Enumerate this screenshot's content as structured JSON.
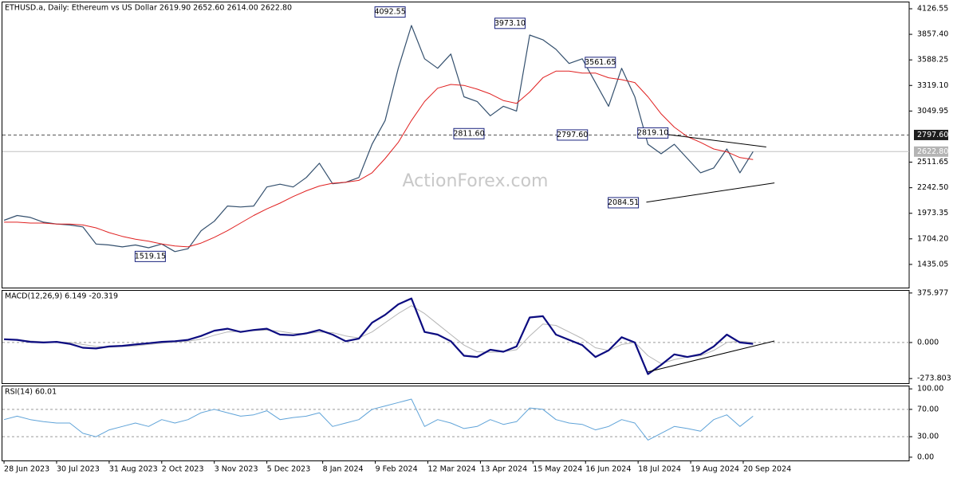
{
  "chart_data": [
    {
      "type": "line",
      "title": "ETHUSD.a, Daily:  Ethereum vs US Dollar  2619.90 2652.60 2614.00 2622.80",
      "watermark": "ActionForex.com",
      "x": [
        0,
        8,
        16,
        24,
        32,
        40,
        48,
        56,
        64,
        72,
        80,
        88,
        96,
        104,
        112,
        120,
        128,
        136,
        144,
        152,
        160,
        168,
        176,
        184,
        192,
        200,
        208,
        216,
        224,
        232,
        240,
        248,
        256,
        264,
        272,
        280,
        288,
        296,
        304,
        312,
        320,
        328,
        336,
        344,
        352,
        360,
        368,
        376,
        384,
        392,
        400,
        408,
        416,
        424,
        432,
        440,
        448,
        456
      ],
      "xlim": [
        -1,
        551
      ],
      "xticks": [
        {
          "value": 0,
          "label": "28 Jun 2023"
        },
        {
          "value": 32,
          "label": "30 Jul 2023"
        },
        {
          "value": 64,
          "label": "31 Aug 2023"
        },
        {
          "value": 96,
          "label": "2 Oct 2023"
        },
        {
          "value": 128,
          "label": "3 Nov 2023"
        },
        {
          "value": 160,
          "label": "5 Dec 2023"
        },
        {
          "value": 194,
          "label": "8 Jan 2024"
        },
        {
          "value": 226,
          "label": "9 Feb 2024"
        },
        {
          "value": 258,
          "label": "12 Mar 2024"
        },
        {
          "value": 290,
          "label": "13 Apr 2024"
        },
        {
          "value": 322,
          "label": "15 May 2024"
        },
        {
          "value": 354,
          "label": "16 Jun 2024"
        },
        {
          "value": 386,
          "label": "18 Jul 2024"
        },
        {
          "value": 418,
          "label": "19 Aug 2024"
        },
        {
          "value": 450,
          "label": "20 Sep 2024"
        }
      ],
      "ylim": [
        1191,
        4202
      ],
      "yticks": [
        4126.55,
        {
          "value": 3857.4,
          "label": "3857.40"
        },
        3588.25,
        {
          "value": 3319.1,
          "label": "3319.10"
        },
        3049.95,
        2511.65,
        {
          "value": 2242.5,
          "label": "2242.50"
        },
        1973.35,
        {
          "value": 1704.2,
          "label": "1704.20"
        },
        1435.05
      ],
      "series": [
        {
          "color": "#34506e",
          "width": 1.2,
          "values": [
            1900,
            1950,
            1930,
            1880,
            1860,
            1850,
            1830,
            1650,
            1640,
            1620,
            1640,
            1610,
            1650,
            1570,
            1600,
            1790,
            1890,
            2050,
            2040,
            2050,
            2250,
            2280,
            2250,
            2350,
            2500,
            2285,
            2300,
            2350,
            2700,
            2950,
            3500,
            3950,
            3600,
            3500,
            3650,
            3200,
            3150,
            3000,
            3100,
            3050,
            3850,
            3800,
            3700,
            3550,
            3600,
            3350,
            3100,
            3500,
            3200,
            2700,
            2600,
            2700,
            2550,
            2400,
            2450,
            2650,
            2400,
            2622.8
          ]
        },
        {
          "color": "#e02020",
          "width": 1,
          "values": [
            1880,
            1880,
            1870,
            1870,
            1860,
            1860,
            1850,
            1820,
            1770,
            1730,
            1700,
            1680,
            1650,
            1630,
            1620,
            1660,
            1720,
            1790,
            1870,
            1950,
            2020,
            2080,
            2150,
            2210,
            2260,
            2290,
            2300,
            2320,
            2400,
            2550,
            2720,
            2950,
            3150,
            3290,
            3330,
            3320,
            3280,
            3230,
            3160,
            3130,
            3250,
            3400,
            3470,
            3470,
            3450,
            3450,
            3400,
            3380,
            3350,
            3200,
            3020,
            2880,
            2780,
            2720,
            2650,
            2620,
            2560,
            2540
          ]
        }
      ],
      "trendlines": [
        {
          "x": [
            391,
            464
          ],
          "values": [
            2831,
            2671
          ]
        },
        {
          "x": [
            391,
            469
          ],
          "values": [
            2091,
            2293
          ]
        }
      ],
      "annotations": [
        {
          "x": 235,
          "value": 4092.55,
          "label": "4092.55"
        },
        {
          "x": 308,
          "value": 3973.1,
          "label": "3973.10"
        },
        {
          "x": 363,
          "value": 3561.65,
          "label": "3561.65"
        },
        {
          "x": 283,
          "value": 2811.6,
          "label": "2811.60"
        },
        {
          "x": 346,
          "value": 2797.6,
          "label": "2797.60"
        },
        {
          "x": 395,
          "value": 2819.1,
          "label": "2819.10"
        },
        {
          "x": 377,
          "value": 2084.51,
          "label": "2084.51"
        },
        {
          "x": 89,
          "value": 1519.15,
          "label": "1519.15"
        }
      ],
      "hlines": [
        {
          "value": 2797.6,
          "label": "2797.60",
          "dashed": true,
          "color": "#555555",
          "label_bg": "#1e1e1e"
        },
        {
          "value": 2622.8,
          "label": "2622.80",
          "dashed": false,
          "color": "#c0c0c0",
          "label_bg": "#b4b4b4"
        }
      ]
    },
    {
      "type": "line",
      "title": "MACD(12,26,9) 6.149 -20.319",
      "ylim": [
        -309,
        399
      ],
      "yticks": [
        375.977,
        {
          "value": 0,
          "label": "0.000",
          "dashed": true
        },
        -273.803
      ],
      "series": [
        {
          "color": "#b5b5b5",
          "width": 1,
          "values": [
            20,
            20,
            12,
            5,
            3,
            0,
            -15,
            -30,
            -35,
            -30,
            -25,
            -15,
            -5,
            3,
            10,
            25,
            55,
            80,
            85,
            90,
            95,
            85,
            70,
            68,
            80,
            75,
            50,
            35,
            80,
            150,
            220,
            280,
            220,
            140,
            60,
            -20,
            -70,
            -75,
            -70,
            -55,
            50,
            140,
            130,
            80,
            30,
            -40,
            -60,
            -15,
            0,
            -100,
            -160,
            -130,
            -110,
            -100,
            -60,
            0,
            10,
            0
          ]
        },
        {
          "color": "#0c0c80",
          "width": 2.2,
          "values": [
            25,
            20,
            5,
            0,
            5,
            -10,
            -40,
            -45,
            -30,
            -25,
            -15,
            -5,
            5,
            10,
            20,
            50,
            90,
            105,
            80,
            95,
            105,
            60,
            55,
            70,
            95,
            60,
            10,
            30,
            150,
            210,
            290,
            335,
            80,
            60,
            10,
            -100,
            -110,
            -55,
            -70,
            -30,
            190,
            200,
            60,
            20,
            -20,
            -110,
            -60,
            40,
            0,
            -240,
            -170,
            -90,
            -110,
            -90,
            -30,
            60,
            0,
            -10
          ]
        }
      ],
      "trendlines": [
        {
          "x": [
            392,
            469
          ],
          "values": [
            -223,
            12
          ]
        }
      ]
    },
    {
      "type": "line",
      "title": "RSI(14) 60.01",
      "ylim": [
        -4.8,
        104.8
      ],
      "yticks": [
        {
          "value": 100,
          "label": "100.00"
        },
        {
          "value": 70,
          "label": "70.00",
          "dashed": true
        },
        {
          "value": 30,
          "label": "30.00",
          "dashed": true
        },
        {
          "value": 0,
          "label": "0.00"
        }
      ],
      "series": [
        {
          "color": "#5fa3d8",
          "width": 1,
          "values": [
            55,
            60,
            55,
            52,
            50,
            50,
            35,
            30,
            40,
            45,
            50,
            45,
            55,
            50,
            55,
            65,
            70,
            65,
            60,
            62,
            68,
            55,
            58,
            60,
            65,
            45,
            50,
            55,
            70,
            75,
            80,
            85,
            45,
            55,
            50,
            42,
            45,
            55,
            48,
            52,
            72,
            70,
            55,
            50,
            48,
            40,
            45,
            55,
            50,
            25,
            35,
            45,
            42,
            38,
            55,
            62,
            45,
            60
          ]
        }
      ]
    }
  ]
}
